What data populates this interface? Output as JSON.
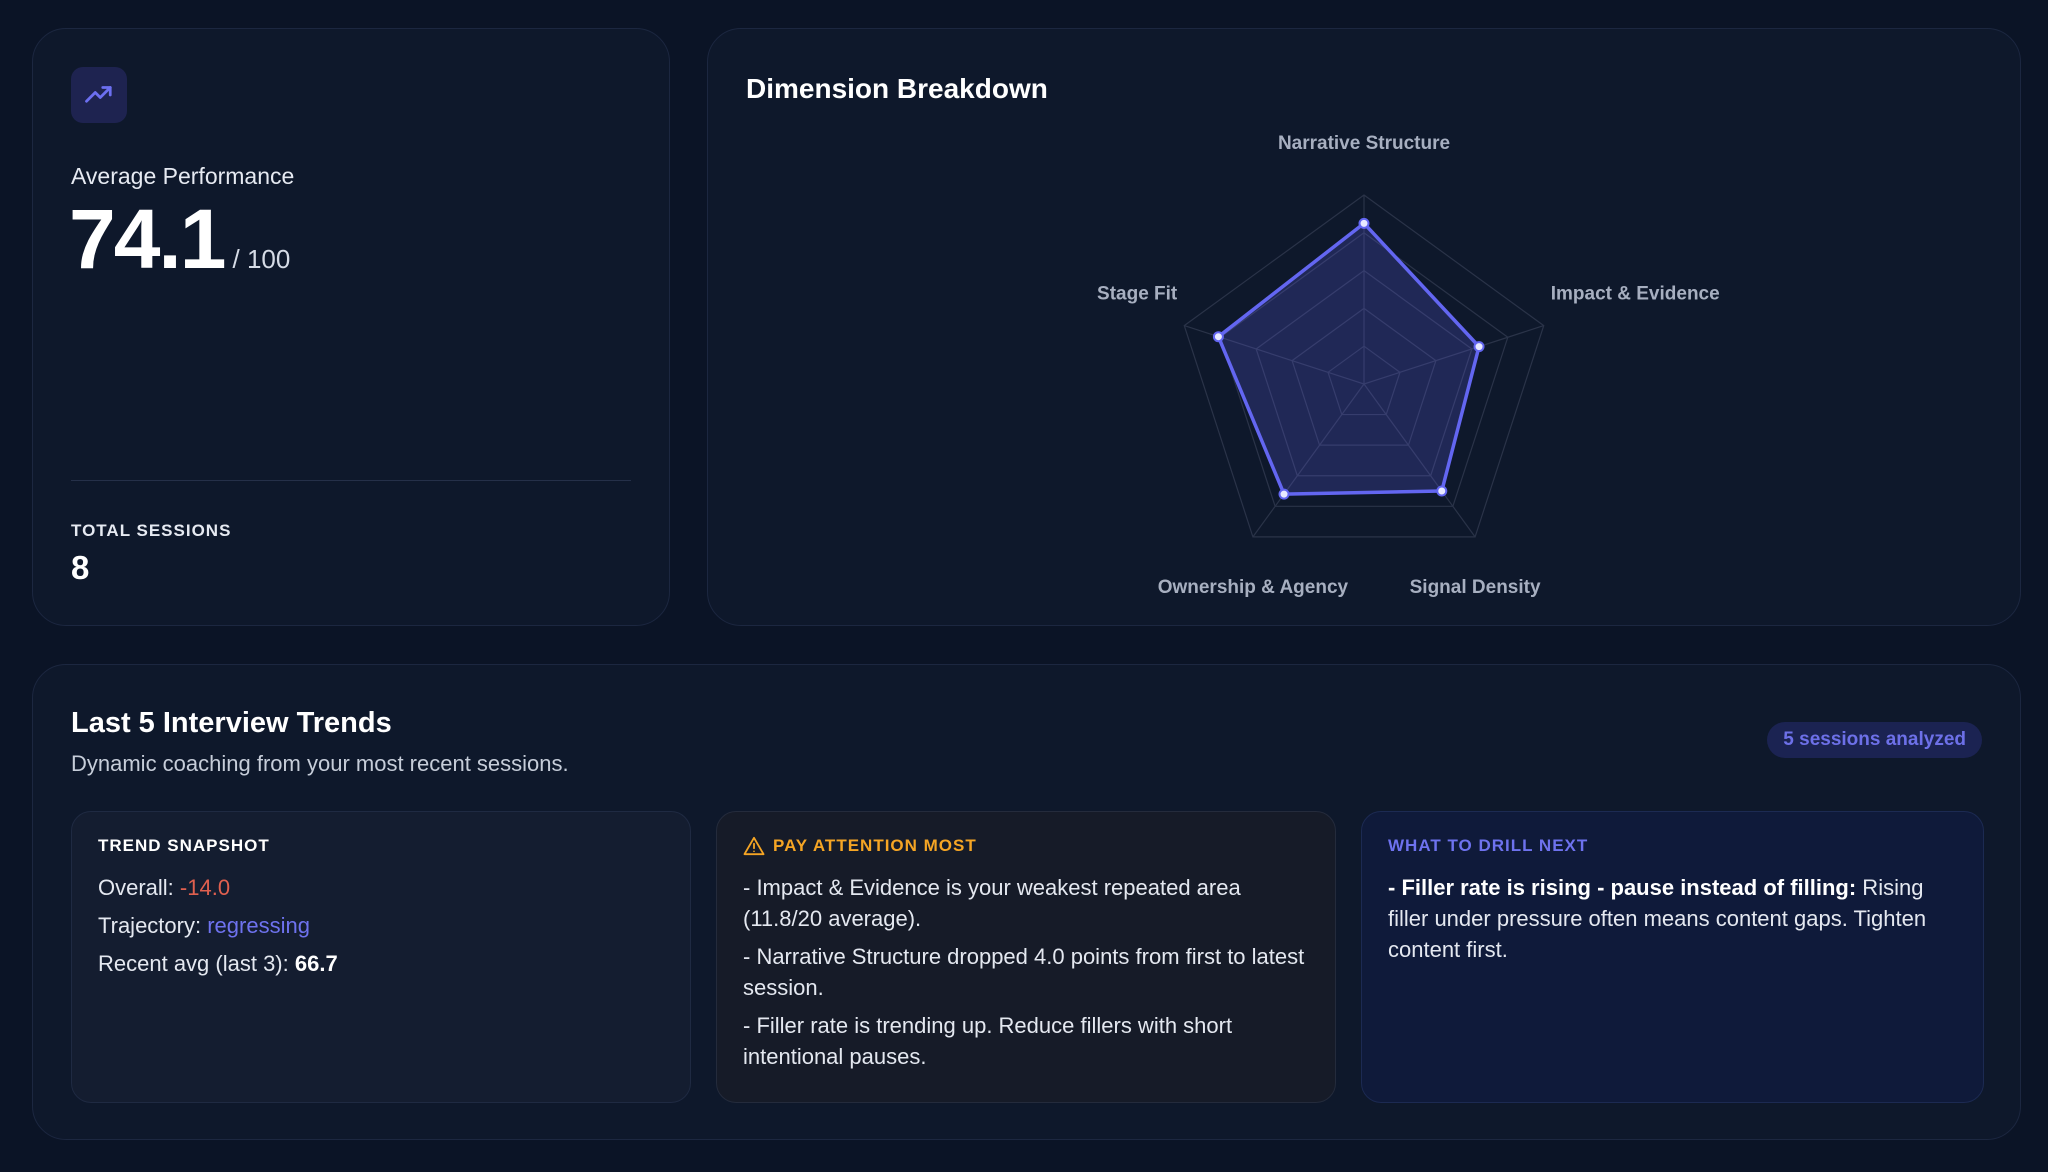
{
  "performance": {
    "label": "Average Performance",
    "score": "74.1",
    "score_max": "/ 100",
    "sessions_label": "TOTAL SESSIONS",
    "sessions_value": "8",
    "icon": "trending-up-icon"
  },
  "radar": {
    "title": "Dimension Breakdown",
    "axes": [
      "Narrative Structure",
      "Impact & Evidence",
      "Signal Density",
      "Ownership & Agency",
      "Stage Fit"
    ],
    "values": [
      0.85,
      0.64,
      0.7,
      0.72,
      0.81
    ],
    "max": 1,
    "rings": 5,
    "colors": {
      "line": "#6366f1",
      "fill": "#6366f1",
      "grid": "#2a3348"
    }
  },
  "trends": {
    "title": "Last 5 Interview Trends",
    "subtitle": "Dynamic coaching from your most recent sessions.",
    "badge": "5 sessions analyzed",
    "snapshot": {
      "heading": "TREND SNAPSHOT",
      "overall_label": "Overall:",
      "overall_value": "-14.0",
      "trajectory_label": "Trajectory:",
      "trajectory_value": "regressing",
      "recent_label": "Recent avg (last 3):",
      "recent_value": "66.7"
    },
    "attention": {
      "heading": "PAY ATTENTION MOST",
      "icon": "warning-icon",
      "items": [
        "- Impact & Evidence is your weakest repeated area (11.8/20 average).",
        "- Narrative Structure dropped 4.0 points from first to latest session.",
        "- Filler rate is trending up. Reduce fillers with short intentional pauses."
      ]
    },
    "drill": {
      "heading": "WHAT TO DRILL NEXT",
      "bold": "- Filler rate is rising - pause instead of filling:",
      "text": " Rising filler under pressure often means content gaps. Tighten content first."
    }
  },
  "colors": {
    "background": "#0b1426",
    "card": "#0e182b",
    "accent": "#6366f1",
    "negative": "#e0604f",
    "warning": "#f5a524",
    "drill": "#6e72ee"
  }
}
